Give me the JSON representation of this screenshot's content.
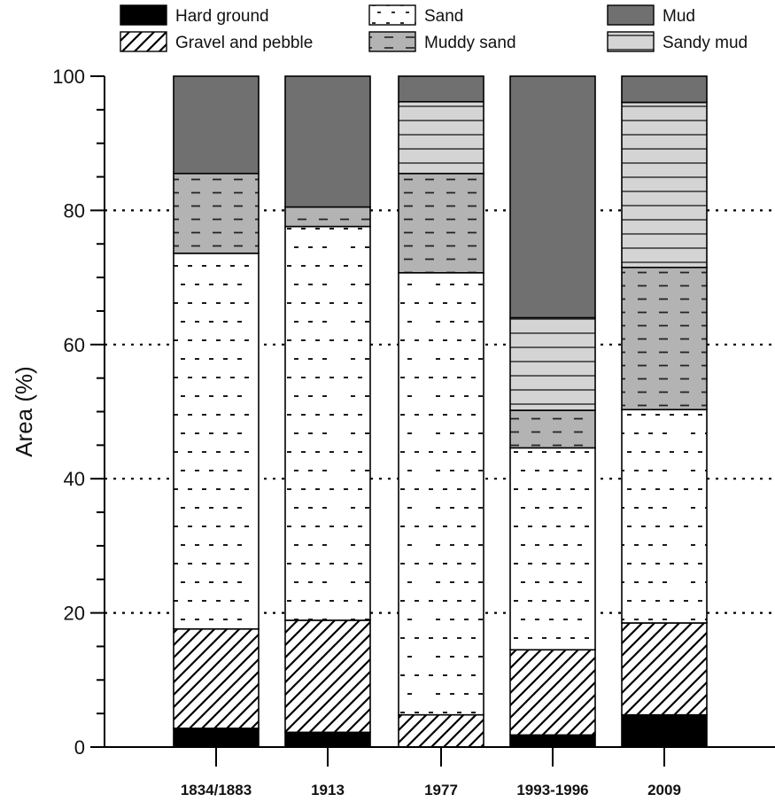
{
  "chart_data": {
    "type": "bar",
    "stacked": true,
    "ylabel": "Area (%)",
    "xlabel": "",
    "ylim": [
      0,
      100
    ],
    "yticks": [
      0,
      20,
      40,
      60,
      80,
      100
    ],
    "grid": "dotted horizontal lines at 20, 40, 60, 80",
    "legend_position": "top",
    "categories": [
      "1834/1883",
      "1913",
      "1977",
      "1993-1996",
      "2009"
    ],
    "series": [
      {
        "name": "Hard ground",
        "pattern": "solid-black",
        "color": "#000000",
        "values": [
          2.8,
          2.2,
          0.0,
          1.8,
          4.8
        ]
      },
      {
        "name": "Gravel and pebble",
        "pattern": "diagonal-hatch",
        "color": "#ffffff",
        "values": [
          14.8,
          16.7,
          4.8,
          12.7,
          13.7
        ]
      },
      {
        "name": "Sand",
        "pattern": "sparse-dashes",
        "color": "#ffffff",
        "values": [
          56.0,
          58.7,
          65.9,
          30.1,
          31.8
        ]
      },
      {
        "name": "Muddy sand",
        "pattern": "dashes",
        "color": "#b3b3b3",
        "values": [
          11.9,
          2.9,
          14.8,
          5.6,
          21.2
        ]
      },
      {
        "name": "Sandy mud",
        "pattern": "horizontal-lines",
        "color": "#d4d4d4",
        "values": [
          0.0,
          0.0,
          10.7,
          13.8,
          24.6
        ]
      },
      {
        "name": "Mud",
        "pattern": "solid-dark-gray",
        "color": "#707070",
        "values": [
          14.5,
          19.5,
          3.8,
          36.0,
          3.9
        ]
      }
    ]
  }
}
